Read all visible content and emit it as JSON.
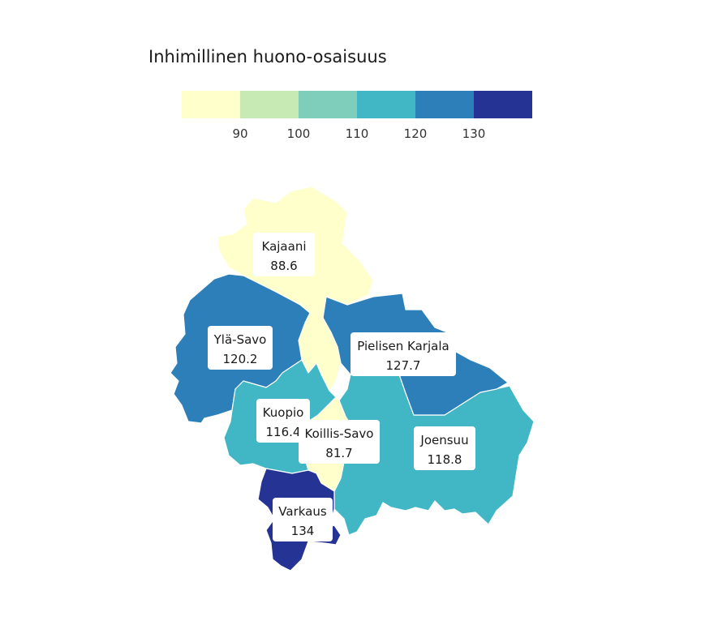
{
  "legend": {
    "title": "Inhimillinen huono-osaisuus",
    "bins": [
      {
        "color": "#ffffcc",
        "label": ""
      },
      {
        "color": "#c7e9b4",
        "label": "90"
      },
      {
        "color": "#7fcdbb",
        "label": "100"
      },
      {
        "color": "#41b6c4",
        "label": "110"
      },
      {
        "color": "#2c7fb8",
        "label": "120"
      },
      {
        "color": "#253494",
        "label": "130"
      }
    ]
  },
  "regions": [
    {
      "name": "Kajaani",
      "value": "88.6",
      "color": "#ffffcc"
    },
    {
      "name": "Ylä-Savo",
      "value": "120.2",
      "color": "#2c7fb8"
    },
    {
      "name": "Pielisen Karjala",
      "value": "127.7",
      "color": "#2c7fb8"
    },
    {
      "name": "Kuopio",
      "value": "116.4",
      "color": "#41b6c4"
    },
    {
      "name": "Koillis-Savo",
      "value": "81.7",
      "color": "#ffffcc"
    },
    {
      "name": "Joensuu",
      "value": "118.8",
      "color": "#41b6c4"
    },
    {
      "name": "Varkaus",
      "value": "134",
      "color": "#253494"
    }
  ]
}
